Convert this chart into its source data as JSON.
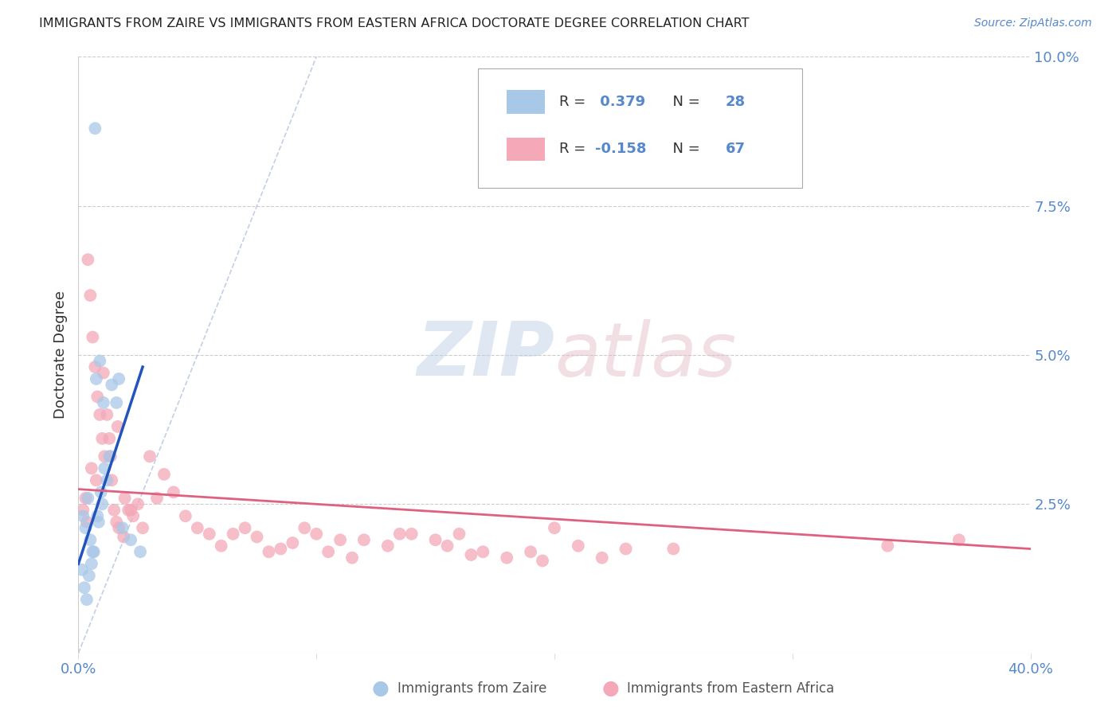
{
  "title": "IMMIGRANTS FROM ZAIRE VS IMMIGRANTS FROM EASTERN AFRICA DOCTORATE DEGREE CORRELATION CHART",
  "source": "Source: ZipAtlas.com",
  "ylabel": "Doctorate Degree",
  "xmin": 0.0,
  "xmax": 40.0,
  "ymin": 0.0,
  "ymax": 10.0,
  "zaire_color": "#a8c8e8",
  "eastern_africa_color": "#f4a8b8",
  "zaire_trend_color": "#2255bb",
  "eastern_africa_trend_color": "#e06080",
  "zaire_R": 0.379,
  "zaire_N": 28,
  "eastern_africa_R": -0.158,
  "eastern_africa_N": 67,
  "legend_label_zaire": "Immigrants from Zaire",
  "legend_label_eastern": "Immigrants from Eastern Africa",
  "background_color": "#ffffff",
  "tick_color": "#5588cc",
  "label_color": "#333333",
  "grid_color": "#cccccc",
  "zaire_x": [
    0.4,
    0.9,
    1.4,
    0.2,
    0.3,
    0.5,
    0.6,
    0.8,
    1.0,
    1.2,
    1.6,
    0.15,
    0.25,
    0.35,
    0.45,
    0.55,
    0.65,
    0.85,
    1.1,
    1.7,
    0.7,
    1.3,
    2.2,
    2.6,
    0.75,
    1.05,
    0.95,
    1.85
  ],
  "zaire_y": [
    2.6,
    4.9,
    4.5,
    2.3,
    2.1,
    1.9,
    1.7,
    2.3,
    2.5,
    2.9,
    4.2,
    1.4,
    1.1,
    0.9,
    1.3,
    1.5,
    1.7,
    2.2,
    3.1,
    4.6,
    8.8,
    3.3,
    1.9,
    1.7,
    4.6,
    4.2,
    2.7,
    2.1
  ],
  "eastern_x": [
    0.2,
    0.3,
    0.4,
    0.5,
    0.6,
    0.7,
    0.8,
    0.9,
    1.0,
    1.1,
    1.2,
    1.3,
    1.4,
    1.5,
    1.6,
    1.7,
    1.9,
    2.1,
    2.3,
    2.5,
    2.7,
    3.0,
    3.3,
    3.6,
    4.0,
    4.5,
    5.0,
    5.5,
    6.0,
    6.5,
    7.0,
    7.5,
    8.0,
    8.5,
    9.0,
    9.5,
    10.0,
    10.5,
    11.0,
    11.5,
    12.0,
    13.0,
    14.0,
    15.0,
    15.5,
    16.0,
    17.0,
    18.0,
    19.0,
    20.0,
    21.0,
    22.0,
    23.0,
    13.5,
    16.5,
    19.5,
    0.35,
    0.55,
    0.75,
    1.05,
    1.35,
    1.65,
    1.95,
    2.2,
    25.0,
    34.0,
    37.0
  ],
  "eastern_y": [
    2.4,
    2.6,
    6.6,
    6.0,
    5.3,
    4.8,
    4.3,
    4.0,
    3.6,
    3.3,
    4.0,
    3.6,
    2.9,
    2.4,
    2.2,
    2.1,
    1.95,
    2.4,
    2.3,
    2.5,
    2.1,
    3.3,
    2.6,
    3.0,
    2.7,
    2.3,
    2.1,
    2.0,
    1.8,
    2.0,
    2.1,
    1.95,
    1.7,
    1.75,
    1.85,
    2.1,
    2.0,
    1.7,
    1.9,
    1.6,
    1.9,
    1.8,
    2.0,
    1.9,
    1.8,
    2.0,
    1.7,
    1.6,
    1.7,
    2.1,
    1.8,
    1.6,
    1.75,
    2.0,
    1.65,
    1.55,
    2.2,
    3.1,
    2.9,
    4.7,
    3.3,
    3.8,
    2.6,
    2.4,
    1.75,
    1.8,
    1.9
  ],
  "zaire_trend_x0": 0.0,
  "zaire_trend_x1": 2.7,
  "zaire_trend_y0": 1.5,
  "zaire_trend_y1": 4.8,
  "eastern_trend_x0": 0.0,
  "eastern_trend_x1": 40.0,
  "eastern_trend_y0": 2.75,
  "eastern_trend_y1": 1.75,
  "diag_x0": 0.0,
  "diag_y0": 0.0,
  "diag_x1": 10.0,
  "diag_y1": 10.0
}
